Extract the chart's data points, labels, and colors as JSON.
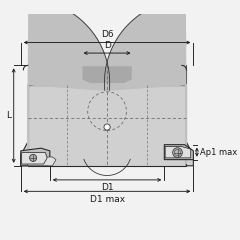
{
  "bg_color": "#f2f2f2",
  "body_fill": "#d0d0d0",
  "body_fill2": "#c0c0c0",
  "dark_fill": "#a8a8a8",
  "insert_fill": "#e0e0e0",
  "line_color": "#2a2a2a",
  "dashed_color": "#666666",
  "dim_color": "#1a1a1a",
  "labels": {
    "D6": "D6",
    "D": "D",
    "D1": "D1",
    "D1max": "D1 max",
    "L": "L",
    "Ap1max": "Ap1 max"
  },
  "font_size": 6.5,
  "fig_size": [
    2.4,
    2.4
  ],
  "dpi": 100
}
